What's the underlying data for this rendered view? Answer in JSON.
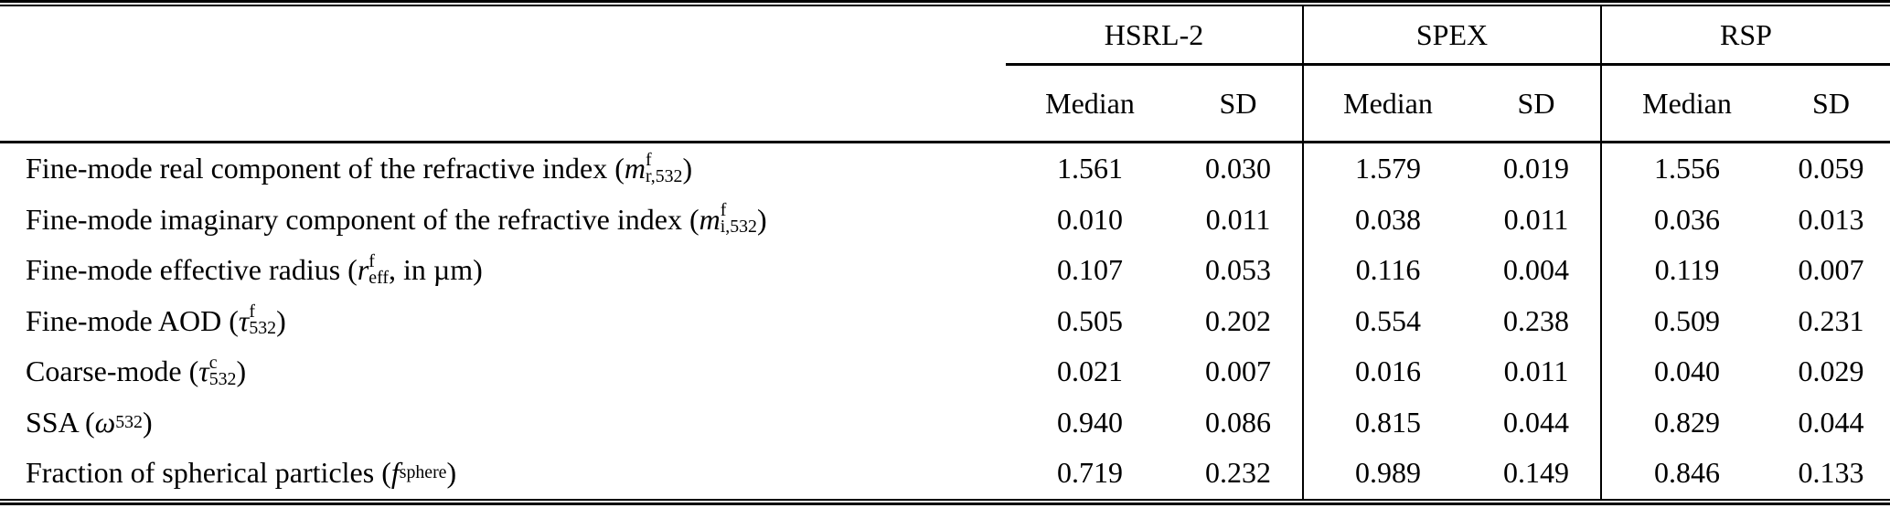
{
  "table": {
    "groups": [
      {
        "label": "HSRL-2"
      },
      {
        "label": "SPEX"
      },
      {
        "label": "RSP"
      }
    ],
    "subheaders": [
      "Median",
      "SD",
      "Median",
      "SD",
      "Median",
      "SD"
    ],
    "rows": [
      {
        "label_text": "Fine-mode real component of the refractive index (m^f_r,532)",
        "label_html": "Fine-mode real component of the refractive index (<i>m</i><span class='ss'><span>f</span><span>r,532</span></span>)",
        "values": [
          "1.561",
          "0.030",
          "1.579",
          "0.019",
          "1.556",
          "0.059"
        ]
      },
      {
        "label_text": "Fine-mode imaginary component of the refractive index (m^f_i,532)",
        "label_html": "Fine-mode imaginary component of the refractive index (<i>m</i><span class='ss'><span>f</span><span>i,532</span></span>)",
        "values": [
          "0.010",
          "0.011",
          "0.038",
          "0.011",
          "0.036",
          "0.013"
        ]
      },
      {
        "label_text": "Fine-mode effective radius (r^f_eff, in µm)",
        "label_html": "Fine-mode effective radius (<i>r</i><span class='ss'><span>f</span><span>eff</span></span>, in µm)",
        "values": [
          "0.107",
          "0.053",
          "0.116",
          "0.004",
          "0.119",
          "0.007"
        ]
      },
      {
        "label_text": "Fine-mode AOD (τ^f_532)",
        "label_html": "Fine-mode AOD (<i>τ</i><span class='ss'><span>f</span><span>532</span></span>)",
        "values": [
          "0.505",
          "0.202",
          "0.554",
          "0.238",
          "0.509",
          "0.231"
        ]
      },
      {
        "label_text": "Coarse-mode (τ^c_532)",
        "label_html": "Coarse-mode (<i>τ</i><span class='ss'><span>c</span><span>532</span></span>)",
        "values": [
          "0.021",
          "0.007",
          "0.016",
          "0.011",
          "0.040",
          "0.029"
        ]
      },
      {
        "label_text": "SSA (ω_532)",
        "label_html": "SSA (<i>ω</i><sub>532</sub>)",
        "values": [
          "0.940",
          "0.086",
          "0.815",
          "0.044",
          "0.829",
          "0.044"
        ]
      },
      {
        "label_text": "Fraction of spherical particles (f_sphere)",
        "label_html": "Fraction of spherical particles (<i>f</i><sub>sphere</sub>)",
        "values": [
          "0.719",
          "0.232",
          "0.989",
          "0.149",
          "0.846",
          "0.133"
        ]
      }
    ]
  }
}
